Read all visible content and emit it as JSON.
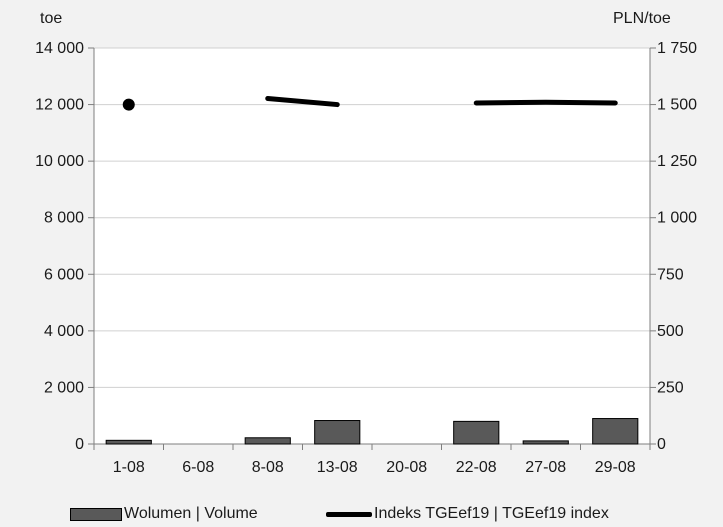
{
  "chart_data": {
    "type": "bar",
    "categories": [
      "1-08",
      "6-08",
      "8-08",
      "13-08",
      "20-08",
      "22-08",
      "27-08",
      "29-08"
    ],
    "left_unit": "toe",
    "right_unit": "PLN/toe",
    "left_axis": {
      "ylim": [
        0,
        14000
      ],
      "ticks": [
        0,
        2000,
        4000,
        6000,
        8000,
        10000,
        12000,
        14000
      ],
      "tick_labels": [
        "0",
        "2 000",
        "4 000",
        "6 000",
        "8 000",
        "10 000",
        "12 000",
        "14 000"
      ]
    },
    "right_axis": {
      "ylim": [
        0,
        1750
      ],
      "ticks": [
        0,
        250,
        500,
        750,
        1000,
        1250,
        1500,
        1750
      ],
      "tick_labels": [
        "0",
        "250",
        "500",
        "750",
        "1 000",
        "1 250",
        "1 500",
        "1 750"
      ]
    },
    "series": [
      {
        "name": "Wolumen  |  Volume",
        "type": "bar",
        "axis": "left",
        "color": "#595959",
        "values": [
          130,
          0,
          220,
          830,
          0,
          800,
          110,
          900
        ]
      },
      {
        "name": "Indeks TGEef19  |  TGEef19 index",
        "type": "line",
        "axis": "right",
        "color": "#000000",
        "values": [
          1500,
          null,
          1527,
          1500,
          null,
          1507,
          1510,
          1507
        ]
      }
    ],
    "grid": "horizontal",
    "legend": "bottom"
  }
}
